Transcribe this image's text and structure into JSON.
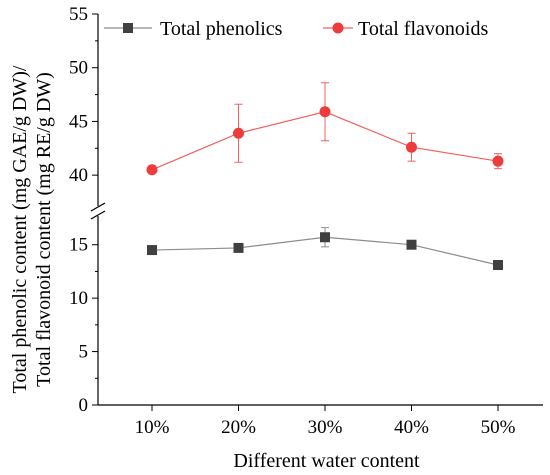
{
  "chart_data": {
    "type": "line",
    "categories": [
      "10%",
      "20%",
      "30%",
      "40%",
      "50%"
    ],
    "xlabel": "Different water content",
    "ylabel_lines": [
      "Total phenolic content (mg GAE/g DW)/",
      "Total flavonoid content (mg RE/g DW)"
    ],
    "axis_break": {
      "lower": [
        0,
        17.5
      ],
      "upper": [
        37.5,
        55
      ]
    },
    "yticks": [
      0,
      5,
      10,
      15,
      40,
      45,
      50,
      55
    ],
    "ytick_labels": [
      "0",
      "5",
      "10",
      "15",
      "40",
      "45",
      "50",
      "55"
    ],
    "legend_position": "top",
    "grid": false,
    "series": [
      {
        "name": "Total phenolics",
        "marker": "square",
        "color": "#404040",
        "line_color": "#8c8c8c",
        "values": [
          14.5,
          14.7,
          15.7,
          15.0,
          13.1
        ],
        "errors": [
          0.1,
          0.1,
          0.9,
          0.1,
          0.1
        ]
      },
      {
        "name": "Total flavonoids",
        "marker": "circle",
        "color": "#ee3b3b",
        "line_color": "#f06060",
        "values": [
          40.5,
          43.9,
          45.9,
          42.6,
          41.3
        ],
        "errors": [
          0.1,
          2.7,
          2.7,
          1.3,
          0.7
        ]
      }
    ]
  }
}
